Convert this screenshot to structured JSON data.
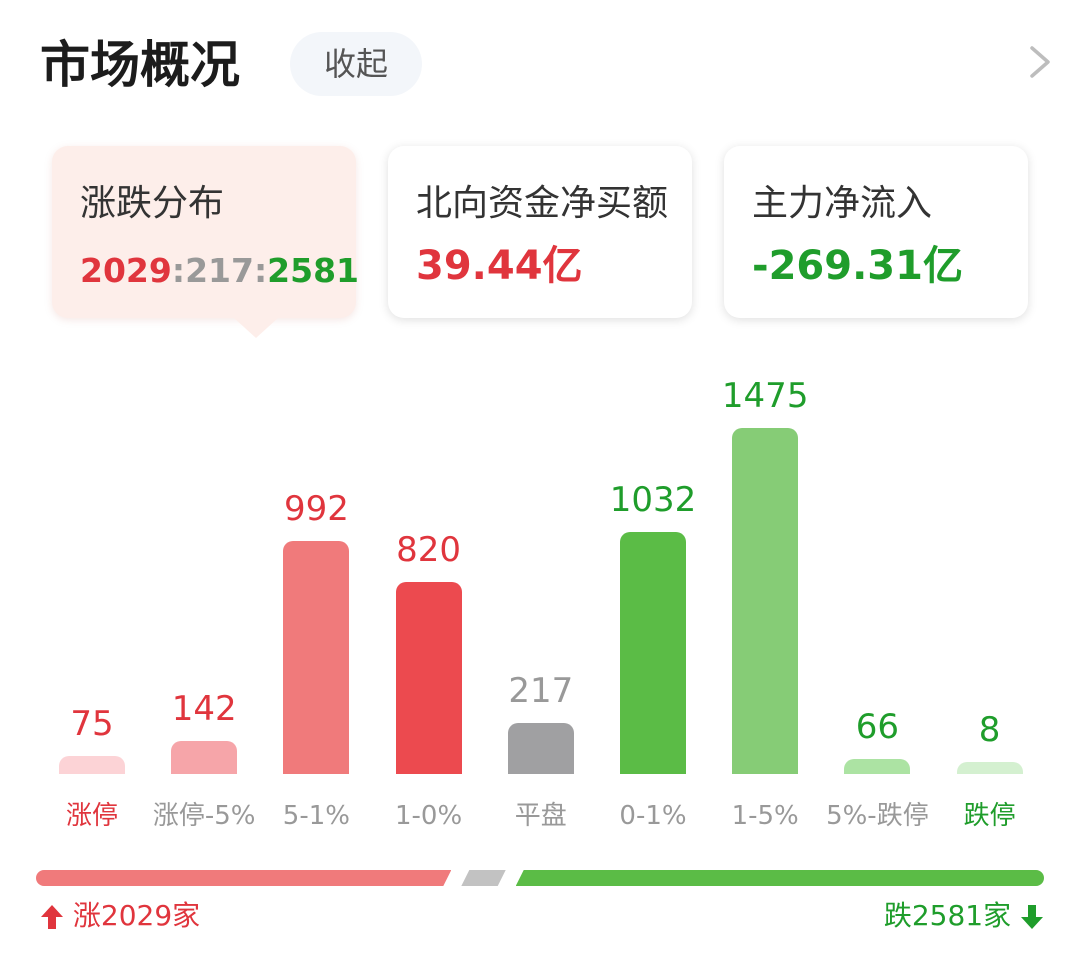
{
  "header": {
    "title": "市场概况",
    "collapse_label": "收起"
  },
  "cards": {
    "distribution": {
      "label": "涨跌分布",
      "up": "2029",
      "flat": "217",
      "down": "2581",
      "sep": ":"
    },
    "northbound": {
      "label": "北向资金净买额",
      "value": "39.44亿"
    },
    "main_flow": {
      "label": "主力净流入",
      "value": "-269.31亿"
    }
  },
  "chart_data": {
    "type": "bar",
    "categories": [
      "涨停",
      "涨停-5%",
      "5-1%",
      "1-0%",
      "平盘",
      "0-1%",
      "1-5%",
      "5%-跌停",
      "跌停"
    ],
    "values": [
      75,
      142,
      992,
      820,
      217,
      1032,
      1475,
      66,
      8
    ],
    "value_labels": [
      "75",
      "142",
      "992",
      "820",
      "217",
      "1032",
      "1475",
      "66",
      "8"
    ],
    "bar_colors": [
      "#fcd3d6",
      "#f6a5a9",
      "#f07a7b",
      "#ec4a4f",
      "#a0a0a2",
      "#5bbc46",
      "#86cc76",
      "#ace3a3",
      "#d4f0d0"
    ],
    "value_colors": [
      "#e0353d",
      "#e0353d",
      "#e0353d",
      "#e0353d",
      "#999999",
      "#1f9d2b",
      "#1f9d2b",
      "#1f9d2b",
      "#1f9d2b"
    ],
    "label_colors": [
      "#e0353d",
      "#999999",
      "#999999",
      "#999999",
      "#999999",
      "#999999",
      "#999999",
      "#999999",
      "#1f9d2b"
    ],
    "ylim": [
      0,
      1475
    ]
  },
  "summary": {
    "up_count": 2029,
    "flat_count": 217,
    "down_count": 2581,
    "up_label": "涨2029家",
    "down_label": "跌2581家",
    "up_color": "#f07a7b",
    "flat_color": "#c2c2c2",
    "down_color": "#5bbc46"
  }
}
